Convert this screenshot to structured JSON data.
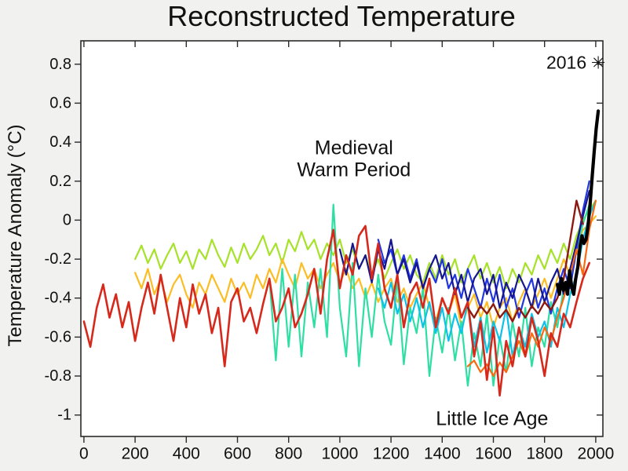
{
  "chart_data": {
    "type": "line",
    "title": "Reconstructed Temperature",
    "xlabel": "",
    "ylabel": "Temperature Anomaly (°C)",
    "xlim": [
      -12,
      2028
    ],
    "ylim": [
      -1.11,
      0.92
    ],
    "x_ticks": [
      0,
      200,
      400,
      600,
      800,
      1000,
      1200,
      1400,
      1600,
      1800,
      2000
    ],
    "y_ticks": [
      0.8,
      0.6,
      0.4,
      0.2,
      0,
      -0.2,
      -0.4,
      -0.6,
      -0.8,
      -1
    ],
    "grid": false,
    "legend": "none",
    "background_color": "#f1f1f0",
    "plot_background_color": "#ffffff",
    "axis_color": "#2b2b2b",
    "annotations": [
      {
        "id": "medieval-warm-period",
        "text_lines": [
          "Medieval",
          "Warm Period"
        ],
        "year": 1055,
        "value": 0.37
      },
      {
        "id": "little-ice-age",
        "text_lines": [
          "Little Ice Age"
        ],
        "year": 1595,
        "value": -1.02
      },
      {
        "id": "year-2016-marker",
        "text": "2016",
        "marker": "✳",
        "year": 2010,
        "value": 0.81
      }
    ],
    "series": [
      {
        "name": "reconstruction-yellowgreen",
        "color": "#a6e22a",
        "width": 2.2,
        "start": 200,
        "step": 25,
        "values": [
          -0.2,
          -0.13,
          -0.22,
          -0.15,
          -0.25,
          -0.18,
          -0.12,
          -0.22,
          -0.16,
          -0.25,
          -0.15,
          -0.2,
          -0.1,
          -0.18,
          -0.24,
          -0.14,
          -0.22,
          -0.12,
          -0.2,
          -0.15,
          -0.08,
          -0.18,
          -0.12,
          -0.22,
          -0.1,
          -0.16,
          -0.06,
          -0.15,
          -0.1,
          -0.2,
          -0.12,
          -0.18,
          -0.1,
          -0.22,
          -0.15,
          -0.25,
          -0.18,
          -0.28,
          -0.2,
          -0.3,
          -0.22,
          -0.15,
          -0.25,
          -0.18,
          -0.28,
          -0.32,
          -0.22,
          -0.3,
          -0.18,
          -0.28,
          -0.2,
          -0.32,
          -0.25,
          -0.18,
          -0.3,
          -0.22,
          -0.32,
          -0.24,
          -0.35,
          -0.25,
          -0.32,
          -0.22,
          -0.28,
          -0.18,
          -0.25,
          -0.15,
          -0.22,
          -0.12,
          -0.2,
          -0.08,
          0.0,
          0.05,
          0.1
        ]
      },
      {
        "name": "reconstruction-gold",
        "color": "#fcbd24",
        "width": 2.2,
        "start": 200,
        "step": 25,
        "values": [
          -0.27,
          -0.35,
          -0.25,
          -0.38,
          -0.3,
          -0.42,
          -0.33,
          -0.28,
          -0.38,
          -0.45,
          -0.32,
          -0.38,
          -0.28,
          -0.35,
          -0.42,
          -0.3,
          -0.38,
          -0.32,
          -0.4,
          -0.28,
          -0.35,
          -0.25,
          -0.32,
          -0.2,
          -0.28,
          -0.35,
          -0.22,
          -0.3,
          -0.25,
          -0.35,
          -0.28,
          -0.22,
          -0.32,
          -0.25,
          -0.35,
          -0.3,
          -0.4,
          -0.32,
          -0.42,
          -0.35,
          -0.3,
          -0.42,
          -0.35,
          -0.45,
          -0.38,
          -0.32,
          -0.45,
          -0.52,
          -0.4,
          -0.48,
          -0.38,
          -0.55,
          -0.45,
          -0.38,
          -0.5,
          -0.42,
          -0.55,
          -0.45,
          -0.4,
          -0.52,
          -0.42,
          -0.35,
          -0.45,
          -0.38,
          -0.3,
          -0.4,
          -0.3,
          -0.2,
          -0.28,
          -0.15,
          -0.05,
          -0.02,
          0.02
        ]
      },
      {
        "name": "reconstruction-springgreen",
        "color": "#2edfa4",
        "width": 2.2,
        "start": 725,
        "step": 25,
        "values": [
          -0.3,
          -0.72,
          -0.25,
          -0.65,
          -0.28,
          -0.7,
          -0.32,
          -0.55,
          -0.25,
          -0.6,
          0.08,
          -0.45,
          -0.7,
          -0.22,
          -0.75,
          -0.35,
          -0.6,
          -0.28,
          -0.52,
          -0.64,
          -0.3,
          -0.74,
          -0.45,
          -0.58,
          -0.35,
          -0.8,
          -0.5,
          -0.68,
          -0.45,
          -0.72,
          -0.52,
          -0.85,
          -0.58,
          -0.75,
          -0.48,
          -0.85,
          -0.6,
          -0.78,
          -0.52,
          -0.7,
          -0.45,
          -0.75,
          -0.55,
          -0.65,
          -0.42,
          -0.55,
          -0.35,
          -0.3,
          -0.15,
          -0.02,
          0.08
        ]
      },
      {
        "name": "reconstruction-cyan",
        "color": "#0cc2e8",
        "width": 2.2,
        "start": 1150,
        "step": 25,
        "values": [
          -0.35,
          -0.45,
          -0.32,
          -0.48,
          -0.38,
          -0.52,
          -0.4,
          -0.55,
          -0.42,
          -0.58,
          -0.45,
          -0.62,
          -0.48,
          -0.58,
          -0.42,
          -0.65,
          -0.5,
          -0.68,
          -0.52,
          -0.62,
          -0.45,
          -0.7,
          -0.55,
          -0.65,
          -0.48,
          -0.6,
          -0.52,
          -0.65,
          -0.45,
          -0.55,
          -0.38,
          -0.28,
          -0.1,
          0.02,
          0.1
        ]
      },
      {
        "name": "reconstruction-blue",
        "color": "#2236df",
        "width": 2.2,
        "start": 1150,
        "step": 25,
        "values": [
          -0.1,
          -0.22,
          -0.15,
          -0.28,
          -0.18,
          -0.3,
          -0.2,
          -0.35,
          -0.25,
          -0.32,
          -0.2,
          -0.35,
          -0.28,
          -0.4,
          -0.25,
          -0.35,
          -0.45,
          -0.3,
          -0.42,
          -0.28,
          -0.45,
          -0.35,
          -0.5,
          -0.38,
          -0.3,
          -0.45,
          -0.35,
          -0.48,
          -0.35,
          -0.25,
          -0.35,
          -0.15,
          0.05,
          0.2
        ]
      },
      {
        "name": "reconstruction-navy",
        "color": "#15158e",
        "width": 2.2,
        "start": 1000,
        "step": 25,
        "values": [
          -0.15,
          -0.28,
          -0.12,
          -0.25,
          -0.18,
          -0.32,
          -0.15,
          -0.25,
          -0.1,
          -0.28,
          -0.2,
          -0.32,
          -0.22,
          -0.35,
          -0.25,
          -0.18,
          -0.3,
          -0.22,
          -0.38,
          -0.28,
          -0.42,
          -0.3,
          -0.25,
          -0.38,
          -0.28,
          -0.45,
          -0.32,
          -0.4,
          -0.28,
          -0.35,
          -0.45,
          -0.3,
          -0.42,
          -0.32,
          -0.25,
          -0.38,
          -0.25,
          -0.12,
          0.02,
          0.15
        ]
      },
      {
        "name": "reconstruction-orange",
        "color": "#f96a10",
        "width": 2.2,
        "start": 1500,
        "step": 25,
        "values": [
          -0.75,
          -0.72,
          -0.78,
          -0.74,
          -0.8,
          -0.73,
          -0.78,
          -0.7,
          -0.62,
          -0.7,
          -0.58,
          -0.65,
          -0.55,
          -0.62,
          -0.5,
          -0.4,
          -0.28,
          -0.15,
          -0.28,
          -0.05,
          0.1
        ]
      },
      {
        "name": "reconstruction-red",
        "color": "#d6291b",
        "width": 2.6,
        "start": 0,
        "step": 25,
        "values": [
          -0.52,
          -0.65,
          -0.45,
          -0.33,
          -0.5,
          -0.38,
          -0.55,
          -0.42,
          -0.62,
          -0.45,
          -0.32,
          -0.48,
          -0.28,
          -0.45,
          -0.62,
          -0.4,
          -0.55,
          -0.33,
          -0.48,
          -0.38,
          -0.58,
          -0.45,
          -0.75,
          -0.42,
          -0.35,
          -0.52,
          -0.45,
          -0.58,
          -0.43,
          -0.3,
          -0.52,
          -0.45,
          -0.35,
          -0.55,
          -0.48,
          -0.38,
          -0.25,
          -0.48,
          -0.2,
          -0.05,
          -0.35,
          -0.18,
          -0.28,
          -0.08,
          -0.03,
          -0.3,
          -0.12,
          -0.35,
          -0.45,
          -0.28,
          -0.55,
          -0.38,
          -0.32,
          -0.45,
          -0.3,
          -0.55,
          -0.4,
          -0.48,
          -0.35,
          -0.5,
          -0.42,
          -0.7,
          -0.52,
          -0.82,
          -0.55,
          -0.9,
          -0.62,
          -0.75,
          -0.55,
          -0.7,
          -0.5,
          -0.62,
          -0.8,
          -0.58,
          -0.65,
          -0.48,
          -0.55,
          -0.42,
          -0.3,
          -0.22
        ]
      },
      {
        "name": "reconstruction-darkred",
        "color": "#8b1a10",
        "width": 2.4,
        "start": 1500,
        "step": 25,
        "values": [
          -0.45,
          -0.5,
          -0.44,
          -0.48,
          -0.43,
          -0.5,
          -0.46,
          -0.52,
          -0.45,
          -0.5,
          -0.44,
          -0.48,
          -0.42,
          -0.46,
          -0.4,
          -0.3,
          -0.1,
          0.1,
          -0.02
        ]
      },
      {
        "name": "instrumental-record-black",
        "color": "#000000",
        "width": 4.2,
        "start": 1850,
        "step": 8,
        "values": [
          -0.33,
          -0.38,
          -0.3,
          -0.36,
          -0.32,
          -0.38,
          -0.26,
          -0.34,
          -0.38,
          -0.3,
          -0.24,
          -0.14,
          -0.08,
          -0.12,
          -0.1,
          -0.03,
          0.08,
          0.22,
          0.35,
          0.47,
          0.56
        ]
      }
    ]
  }
}
